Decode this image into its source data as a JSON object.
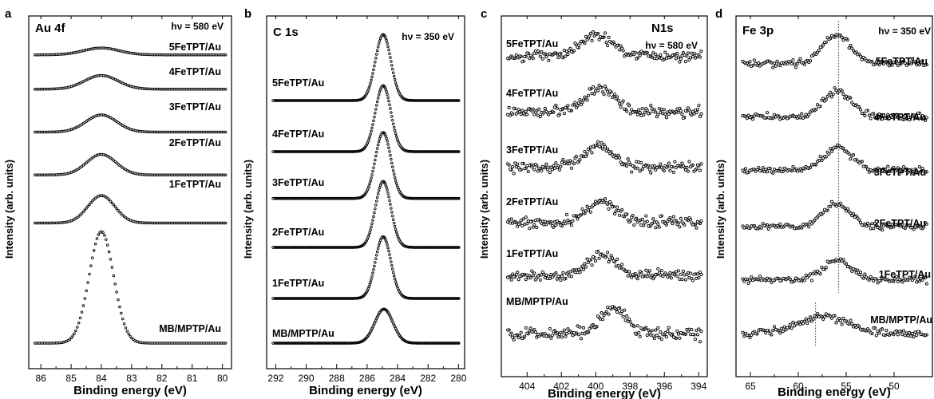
{
  "chart_data": [
    {
      "panel": "a",
      "type": "scatter",
      "title": "Au 4f",
      "photon_energy": "hν = 580 eV",
      "xlabel": "Binding energy (eV)",
      "ylabel": "Intensity (arb. units)",
      "xlim": [
        86.4,
        79.7
      ],
      "xticks": [
        "86",
        "85",
        "84",
        "83",
        "82",
        "81",
        "80"
      ],
      "x_reversed": true,
      "y_stacked_offsets": true,
      "series": [
        {
          "name": "MB/MPTP/Au",
          "peak_x": 84.0,
          "fwhm": 0.95,
          "amplitude": 6.5,
          "baseline_offset": 0.0,
          "noise": 0.0,
          "point_spacing": 0.05
        },
        {
          "name": "1FeTPT/Au",
          "peak_x": 84.0,
          "fwhm": 1.05,
          "amplitude": 1.6,
          "baseline_offset": 7.0,
          "noise": 0.0,
          "point_spacing": 0.05
        },
        {
          "name": "2FeTPT/Au",
          "peak_x": 84.0,
          "fwhm": 1.15,
          "amplitude": 1.2,
          "baseline_offset": 9.8,
          "noise": 0.0,
          "point_spacing": 0.05
        },
        {
          "name": "3FeTPT/Au",
          "peak_x": 84.0,
          "fwhm": 1.2,
          "amplitude": 1.0,
          "baseline_offset": 12.3,
          "noise": 0.0,
          "point_spacing": 0.05
        },
        {
          "name": "4FeTPT/Au",
          "peak_x": 84.0,
          "fwhm": 1.3,
          "amplitude": 0.8,
          "baseline_offset": 14.8,
          "noise": 0.0,
          "point_spacing": 0.05
        },
        {
          "name": "5FeTPT/Au",
          "peak_x": 84.0,
          "fwhm": 1.4,
          "amplitude": 0.4,
          "baseline_offset": 16.8,
          "noise": 0.0,
          "point_spacing": 0.05
        }
      ],
      "guide_lines": []
    },
    {
      "panel": "b",
      "type": "scatter",
      "title": "C 1s",
      "photon_energy": "hν = 350 eV",
      "xlabel": "Binding energy (eV)",
      "ylabel": "Intensity (arb. units)",
      "xlim": [
        292.6,
        279.6
      ],
      "xticks": [
        "292",
        "290",
        "288",
        "286",
        "284",
        "282",
        "280"
      ],
      "x_reversed": true,
      "y_stacked_offsets": true,
      "series": [
        {
          "name": "MB/MPTP/Au",
          "peak_x": 284.9,
          "fwhm": 1.4,
          "amplitude": 1.6,
          "baseline_offset": 0.0,
          "noise": 0.0,
          "point_spacing": 0.05
        },
        {
          "name": "1FeTPT/Au",
          "peak_x": 284.95,
          "fwhm": 1.2,
          "amplitude": 2.9,
          "baseline_offset": 2.1,
          "noise": 0.0,
          "point_spacing": 0.05
        },
        {
          "name": "2FeTPT/Au",
          "peak_x": 284.95,
          "fwhm": 1.2,
          "amplitude": 3.1,
          "baseline_offset": 4.5,
          "noise": 0.0,
          "point_spacing": 0.05
        },
        {
          "name": "3FeTPT/Au",
          "peak_x": 284.95,
          "fwhm": 1.2,
          "amplitude": 3.1,
          "baseline_offset": 6.8,
          "noise": 0.0,
          "point_spacing": 0.05
        },
        {
          "name": "4FeTPT/Au",
          "peak_x": 284.95,
          "fwhm": 1.2,
          "amplitude": 3.1,
          "baseline_offset": 9.0,
          "noise": 0.0,
          "point_spacing": 0.05
        },
        {
          "name": "5FeTPT/Au",
          "peak_x": 284.95,
          "fwhm": 1.2,
          "amplitude": 3.1,
          "baseline_offset": 11.4,
          "noise": 0.0,
          "point_spacing": 0.05
        }
      ],
      "guide_lines": []
    },
    {
      "panel": "c",
      "type": "scatter",
      "title": "N1s",
      "photon_energy": "hν = 580 eV",
      "xlabel": "Binding energy (eV)",
      "ylabel": "Intensity (arb. units)",
      "xlim": [
        405.5,
        393.5
      ],
      "xticks": [
        "404",
        "402",
        "400",
        "398",
        "396",
        "394"
      ],
      "x_reversed": true,
      "y_stacked_offsets": true,
      "series": [
        {
          "name": "MB/MPTP/Au",
          "peak_x": 399.0,
          "fwhm": 1.8,
          "amplitude": 1.1,
          "baseline_offset": 0.0,
          "noise": 0.22,
          "point_spacing": 0.07
        },
        {
          "name": "1FeTPT/Au",
          "peak_x": 399.6,
          "fwhm": 2.0,
          "amplitude": 0.9,
          "baseline_offset": 2.5,
          "noise": 0.2,
          "point_spacing": 0.07
        },
        {
          "name": "2FeTPT/Au",
          "peak_x": 399.7,
          "fwhm": 2.0,
          "amplitude": 0.9,
          "baseline_offset": 4.8,
          "noise": 0.2,
          "point_spacing": 0.07
        },
        {
          "name": "3FeTPT/Au",
          "peak_x": 399.8,
          "fwhm": 2.0,
          "amplitude": 0.9,
          "baseline_offset": 7.2,
          "noise": 0.2,
          "point_spacing": 0.07
        },
        {
          "name": "4FeTPT/Au",
          "peak_x": 399.8,
          "fwhm": 2.0,
          "amplitude": 1.0,
          "baseline_offset": 9.6,
          "noise": 0.2,
          "point_spacing": 0.07
        },
        {
          "name": "5FeTPT/Au",
          "peak_x": 399.9,
          "fwhm": 2.2,
          "amplitude": 0.9,
          "baseline_offset": 12.0,
          "noise": 0.2,
          "point_spacing": 0.07
        }
      ],
      "guide_lines": []
    },
    {
      "panel": "d",
      "type": "scatter",
      "title": "Fe 3p",
      "photon_energy": "hν = 350 eV",
      "xlabel": "Binding energy (eV)",
      "ylabel": "Intensity (arb. units)",
      "xlim": [
        66.5,
        46.0
      ],
      "xticks": [
        "65",
        "60",
        "55",
        "50"
      ],
      "x_reversed": true,
      "y_stacked_offsets": true,
      "series": [
        {
          "name": "MB/MPTP/Au",
          "peak_x": 57.5,
          "fwhm": 6.0,
          "amplitude": 0.6,
          "baseline_offset": 0.0,
          "noise": 0.12,
          "point_spacing": 0.15
        },
        {
          "name": "1FeTPT/Au",
          "peak_x": 55.9,
          "fwhm": 3.5,
          "amplitude": 0.7,
          "baseline_offset": 1.9,
          "noise": 0.1,
          "point_spacing": 0.15
        },
        {
          "name": "2FeTPT/Au",
          "peak_x": 56.0,
          "fwhm": 3.5,
          "amplitude": 0.8,
          "baseline_offset": 3.8,
          "noise": 0.1,
          "point_spacing": 0.15
        },
        {
          "name": "3FeTPT/Au",
          "peak_x": 55.9,
          "fwhm": 3.5,
          "amplitude": 0.8,
          "baseline_offset": 5.8,
          "noise": 0.1,
          "point_spacing": 0.15
        },
        {
          "name": "4FeTPT/Au",
          "peak_x": 55.9,
          "fwhm": 3.5,
          "amplitude": 0.9,
          "baseline_offset": 7.7,
          "noise": 0.1,
          "point_spacing": 0.15
        },
        {
          "name": "5FeTPT/Au",
          "peak_x": 56.0,
          "fwhm": 3.5,
          "amplitude": 1.0,
          "baseline_offset": 9.6,
          "noise": 0.1,
          "point_spacing": 0.15
        }
      ],
      "guide_lines": [
        {
          "x": 55.8,
          "style": "dotted",
          "from_series": 1,
          "to_series": 5
        },
        {
          "x": 58.2,
          "style": "dotted",
          "from_series": 0,
          "to_series": 0
        }
      ]
    }
  ]
}
